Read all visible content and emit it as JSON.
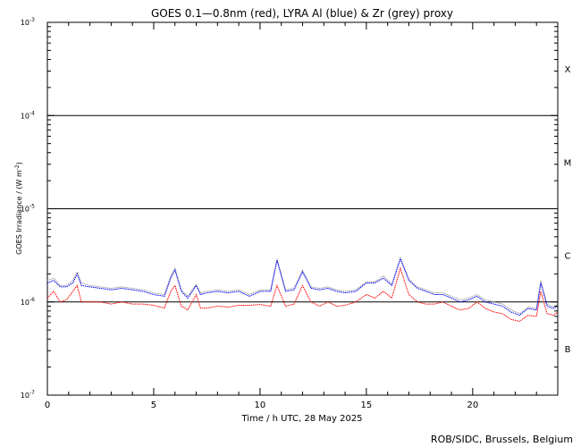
{
  "chart_data": {
    "type": "line",
    "title": "GOES 0.1—0.8nm (red), LYRA Al (blue) & Zr (grey) proxy",
    "xlabel": "Time / h UTC, 28 May 2025",
    "ylabel": "GOES Irradiance / (W m",
    "ylabel_sup": "-2",
    "ylabel_close": ")",
    "credit": "ROB/SIDC, Brussels, Belgium",
    "xlim": [
      0,
      24
    ],
    "ylim": [
      1e-07,
      0.001
    ],
    "yscale": "log",
    "x_ticks": [
      0,
      5,
      10,
      15,
      20
    ],
    "x_tick_labels": [
      "0",
      "5",
      "10",
      "15",
      "20"
    ],
    "y_ticks": [
      {
        "value": 0.001,
        "base": "10",
        "exp": "-3"
      },
      {
        "value": 0.0001,
        "base": "10",
        "exp": "-4"
      },
      {
        "value": 1e-05,
        "base": "10",
        "exp": "-5"
      },
      {
        "value": 1e-06,
        "base": "10",
        "exp": "-6"
      },
      {
        "value": 1e-07,
        "base": "10",
        "exp": "-7"
      }
    ],
    "class_lines": [
      0.0001,
      1e-05,
      1e-06
    ],
    "flare_classes": [
      {
        "label": "X",
        "value": 0.000316
      },
      {
        "label": "M",
        "value": 3.16e-05
      },
      {
        "label": "C",
        "value": 3.16e-06
      },
      {
        "label": "B",
        "value": 3.16e-07
      }
    ],
    "series": [
      {
        "color": "#ff0000",
        "x": [
          0,
          0.3,
          0.6,
          0.9,
          1.2,
          1.4,
          1.6,
          2.0,
          2.5,
          3.0,
          3.5,
          4.0,
          4.5,
          5.0,
          5.5,
          5.8,
          6.0,
          6.3,
          6.6,
          7.0,
          7.2,
          7.5,
          8.0,
          8.5,
          9.0,
          9.5,
          10.0,
          10.5,
          10.8,
          11.2,
          11.6,
          12.0,
          12.4,
          12.8,
          13.2,
          13.6,
          14.0,
          14.5,
          15.0,
          15.4,
          15.8,
          16.2,
          16.6,
          17.0,
          17.4,
          17.8,
          18.2,
          18.6,
          19.0,
          19.4,
          19.8,
          20.2,
          20.6,
          21.0,
          21.4,
          21.8,
          22.2,
          22.6,
          23.0,
          23.2,
          23.5,
          23.8,
          24.0
        ],
        "values": [
          1.1e-06,
          1.3e-06,
          1e-06,
          1.05e-06,
          1.3e-06,
          1.5e-06,
          1e-06,
          1e-06,
          1e-06,
          9.5e-07,
          1e-06,
          9.5e-07,
          9.5e-07,
          9.2e-07,
          8.6e-07,
          1.3e-06,
          1.5e-06,
          9e-07,
          8.2e-07,
          1.2e-06,
          8.6e-07,
          8.6e-07,
          9e-07,
          8.8e-07,
          9.2e-07,
          9.2e-07,
          9.4e-07,
          9e-07,
          1.5e-06,
          9e-07,
          9.5e-07,
          1.5e-06,
          1e-06,
          9e-07,
          1e-06,
          9e-07,
          9.2e-07,
          1e-06,
          1.2e-06,
          1.1e-06,
          1.3e-06,
          1.1e-06,
          2.3e-06,
          1.2e-06,
          1e-06,
          9.5e-07,
          9.5e-07,
          1e-06,
          9e-07,
          8.2e-07,
          8.5e-07,
          1e-06,
          8.5e-07,
          7.8e-07,
          7.5e-07,
          6.5e-07,
          6.2e-07,
          7.2e-07,
          7e-07,
          1.3e-06,
          7.5e-07,
          7.2e-07,
          7.8e-07
        ]
      },
      {
        "color": "#0000ff",
        "x": [
          0,
          0.3,
          0.6,
          0.9,
          1.2,
          1.4,
          1.6,
          2.0,
          2.5,
          3.0,
          3.5,
          4.0,
          4.5,
          5.0,
          5.5,
          5.8,
          6.0,
          6.3,
          6.6,
          7.0,
          7.2,
          7.5,
          8.0,
          8.5,
          9.0,
          9.5,
          10.0,
          10.5,
          10.8,
          11.2,
          11.6,
          12.0,
          12.4,
          12.8,
          13.2,
          13.6,
          14.0,
          14.5,
          15.0,
          15.4,
          15.8,
          16.2,
          16.6,
          17.0,
          17.4,
          17.8,
          18.2,
          18.6,
          19.0,
          19.4,
          19.8,
          20.2,
          20.6,
          21.0,
          21.4,
          21.8,
          22.2,
          22.6,
          23.0,
          23.2,
          23.5,
          23.8,
          24.0
        ],
        "values": [
          1.6e-06,
          1.7e-06,
          1.45e-06,
          1.45e-06,
          1.6e-06,
          2e-06,
          1.5e-06,
          1.45e-06,
          1.4e-06,
          1.35e-06,
          1.4e-06,
          1.35e-06,
          1.3e-06,
          1.2e-06,
          1.15e-06,
          1.8e-06,
          2.2e-06,
          1.3e-06,
          1.1e-06,
          1.5e-06,
          1.2e-06,
          1.25e-06,
          1.3e-06,
          1.25e-06,
          1.3e-06,
          1.15e-06,
          1.3e-06,
          1.3e-06,
          2.8e-06,
          1.3e-06,
          1.35e-06,
          2.1e-06,
          1.4e-06,
          1.35e-06,
          1.4e-06,
          1.3e-06,
          1.25e-06,
          1.3e-06,
          1.6e-06,
          1.6e-06,
          1.8e-06,
          1.5e-06,
          2.9e-06,
          1.7e-06,
          1.4e-06,
          1.3e-06,
          1.2e-06,
          1.2e-06,
          1.1e-06,
          1e-06,
          1.05e-06,
          1.15e-06,
          1e-06,
          9.5e-07,
          9e-07,
          7.8e-07,
          7.2e-07,
          8.5e-07,
          8.2e-07,
          1.6e-06,
          9e-07,
          8.5e-07,
          9e-07
        ]
      },
      {
        "color": "#999999",
        "x": [
          0,
          0.3,
          0.6,
          0.9,
          1.2,
          1.4,
          1.6,
          2.0,
          2.5,
          3.0,
          3.5,
          4.0,
          4.5,
          5.0,
          5.5,
          5.8,
          6.0,
          6.3,
          6.6,
          7.0,
          7.2,
          7.5,
          8.0,
          8.5,
          9.0,
          9.5,
          10.0,
          10.5,
          10.8,
          11.2,
          11.6,
          12.0,
          12.4,
          12.8,
          13.2,
          13.6,
          14.0,
          14.5,
          15.0,
          15.4,
          15.8,
          16.2,
          16.6,
          17.0,
          17.4,
          17.8,
          18.2,
          18.6,
          19.0,
          19.4,
          19.8,
          20.2,
          20.6,
          21.0,
          21.4,
          21.8,
          22.2,
          22.6,
          23.0,
          23.2,
          23.5,
          23.8,
          24.0
        ],
        "values": [
          1.7e-06,
          1.8e-06,
          1.5e-06,
          1.5e-06,
          1.7e-06,
          2.1e-06,
          1.6e-06,
          1.5e-06,
          1.45e-06,
          1.4e-06,
          1.45e-06,
          1.4e-06,
          1.35e-06,
          1.25e-06,
          1.2e-06,
          1.9e-06,
          2.3e-06,
          1.35e-06,
          1.15e-06,
          1.55e-06,
          1.25e-06,
          1.3e-06,
          1.35e-06,
          1.3e-06,
          1.35e-06,
          1.2e-06,
          1.35e-06,
          1.35e-06,
          2.9e-06,
          1.35e-06,
          1.4e-06,
          2.2e-06,
          1.45e-06,
          1.4e-06,
          1.45e-06,
          1.35e-06,
          1.3e-06,
          1.35e-06,
          1.65e-06,
          1.65e-06,
          1.9e-06,
          1.55e-06,
          3e-06,
          1.75e-06,
          1.45e-06,
          1.35e-06,
          1.25e-06,
          1.25e-06,
          1.15e-06,
          1.05e-06,
          1.1e-06,
          1.2e-06,
          1.05e-06,
          1e-06,
          9.5e-07,
          8.2e-07,
          7.5e-07,
          8.8e-07,
          8.5e-07,
          1.7e-06,
          9.5e-07,
          8.8e-07,
          9.5e-07
        ]
      }
    ]
  }
}
